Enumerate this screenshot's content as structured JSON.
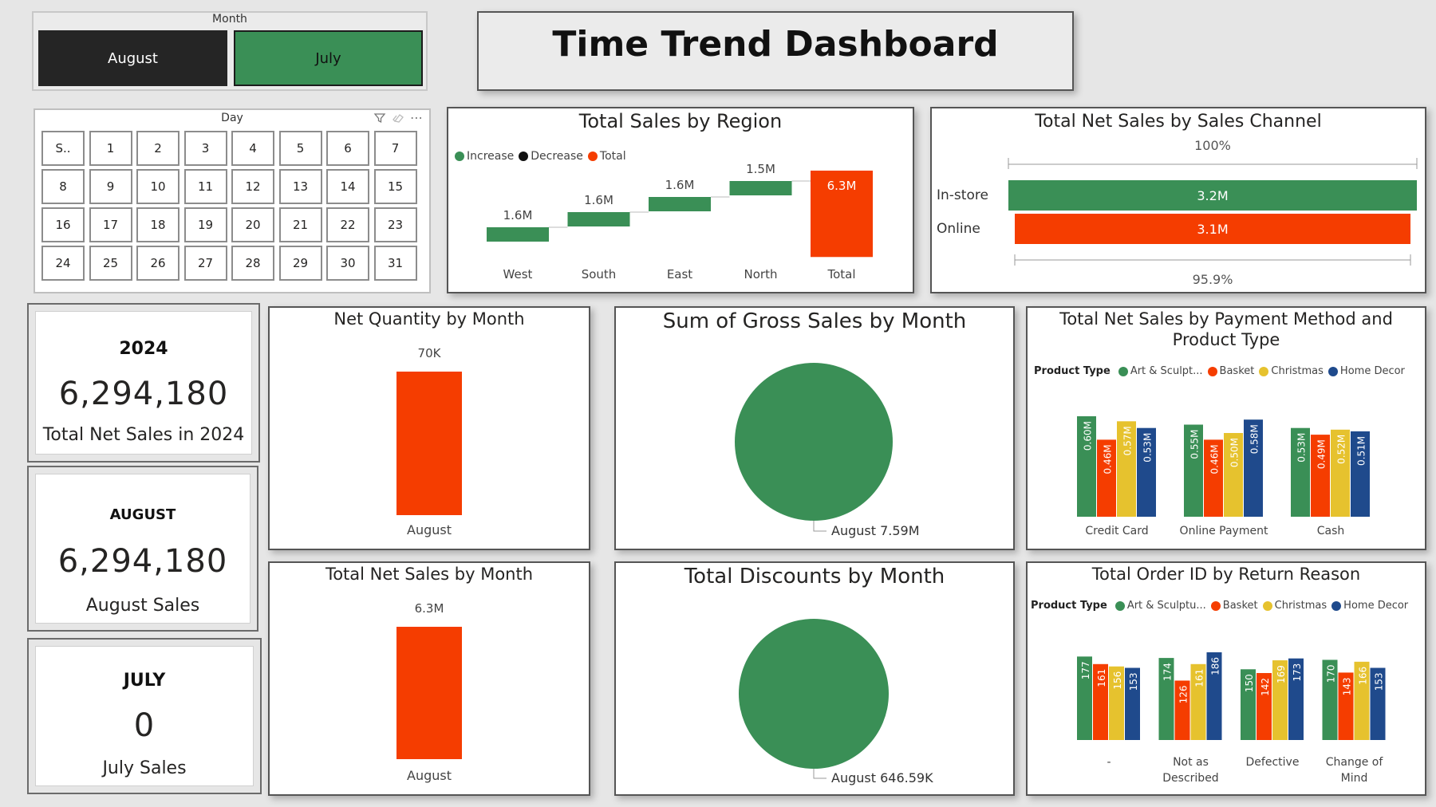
{
  "colors": {
    "green": "#3a8f56",
    "orange": "#f53d00",
    "black": "#1f1f1f",
    "yellow": "#e6c22e",
    "navy": "#1f4a8c",
    "tint": "#e6e6e6"
  },
  "header": {
    "title": "Time Trend Dashboard"
  },
  "month_slicer": {
    "title": "Month",
    "options": [
      "August",
      "July"
    ],
    "selected": "August"
  },
  "day_slicer": {
    "title": "Day",
    "icons": [
      "filter-icon",
      "eraser-icon",
      "more-options-icon"
    ],
    "days": [
      "S..",
      "1",
      "2",
      "3",
      "4",
      "5",
      "6",
      "7",
      "8",
      "9",
      "10",
      "11",
      "12",
      "13",
      "14",
      "15",
      "16",
      "17",
      "18",
      "19",
      "20",
      "21",
      "22",
      "23",
      "24",
      "25",
      "26",
      "27",
      "28",
      "29",
      "30",
      "31"
    ]
  },
  "kpis": [
    {
      "heading": "2024",
      "value": "6,294,180",
      "label": "Total Net Sales in 2024"
    },
    {
      "heading": "AUGUST",
      "value": "6,294,180",
      "label": "August Sales"
    },
    {
      "heading": "JULY",
      "value": "0",
      "label": "July Sales"
    }
  ],
  "chart_data": [
    {
      "id": "region",
      "type": "waterfall",
      "title": "Total Sales by Region",
      "legend": [
        {
          "name": "Increase",
          "color": "#3a8f56"
        },
        {
          "name": "Decrease",
          "color": "#1f1f1f"
        },
        {
          "name": "Total",
          "color": "#f53d00"
        }
      ],
      "categories": [
        "West",
        "South",
        "East",
        "North",
        "Total"
      ],
      "values": [
        1.6,
        1.6,
        1.6,
        1.5,
        6.3
      ],
      "labels": [
        "1.6M",
        "1.6M",
        "1.6M",
        "1.5M",
        "6.3M"
      ],
      "ylim": [
        -4.5,
        6.8
      ]
    },
    {
      "id": "channel",
      "type": "funnel",
      "title": "Total Net Sales by Sales Channel",
      "categories": [
        "In-store",
        "Online"
      ],
      "values": [
        3.2,
        3.1
      ],
      "labels": [
        "3.2M",
        "3.1M"
      ],
      "top_label": "100%",
      "bottom_label": "95.9%"
    },
    {
      "id": "netqty",
      "type": "bar",
      "title": "Net Quantity by Month",
      "categories": [
        "August"
      ],
      "values": [
        70000
      ],
      "labels": [
        "70K"
      ]
    },
    {
      "id": "gross",
      "type": "pie",
      "title": "Sum of Gross Sales by Month",
      "slices": [
        {
          "name": "August",
          "value": 7.59
        }
      ],
      "labels": [
        "August 7.59M"
      ]
    },
    {
      "id": "payment",
      "type": "bar",
      "title": "Total Net Sales by Payment Method and Product Type",
      "title_lines": [
        "Total Net Sales by Payment Method and",
        "Product Type"
      ],
      "legend_title": "Product Type",
      "categories": [
        "Credit Card",
        "Online Payment",
        "Cash"
      ],
      "series": [
        {
          "name": "Art & Sculpt...",
          "color": "#3a8f56",
          "values": [
            0.6,
            0.55,
            0.53
          ],
          "labels": [
            "0.60M",
            "0.55M",
            "0.53M"
          ]
        },
        {
          "name": "Basket",
          "color": "#f53d00",
          "values": [
            0.46,
            0.46,
            0.49
          ],
          "labels": [
            "0.46M",
            "0.46M",
            "0.49M"
          ]
        },
        {
          "name": "Christmas",
          "color": "#e6c22e",
          "values": [
            0.57,
            0.5,
            0.52
          ],
          "labels": [
            "0.57M",
            "0.50M",
            "0.52M"
          ]
        },
        {
          "name": "Home Decor",
          "color": "#1f4a8c",
          "values": [
            0.53,
            0.58,
            0.51
          ],
          "labels": [
            "0.53M",
            "0.58M",
            "0.51M"
          ]
        }
      ]
    },
    {
      "id": "netsales",
      "type": "bar",
      "title": "Total Net Sales by Month",
      "categories": [
        "August"
      ],
      "values": [
        6.3
      ],
      "labels": [
        "6.3M"
      ]
    },
    {
      "id": "discounts",
      "type": "pie",
      "title": "Total Discounts by Month",
      "slices": [
        {
          "name": "August",
          "value": 646.59
        }
      ],
      "labels": [
        "August 646.59K"
      ]
    },
    {
      "id": "returns",
      "type": "bar",
      "title": "Total Order ID by Return Reason",
      "legend_title": "Product Type",
      "categories": [
        "-",
        "Not as Described",
        "Defective",
        "Change of Mind"
      ],
      "category_lines": [
        [
          "-"
        ],
        [
          "Not as",
          "Described"
        ],
        [
          "Defective"
        ],
        [
          "Change of",
          "Mind"
        ]
      ],
      "series": [
        {
          "name": "Art & Sculptu...",
          "color": "#3a8f56",
          "values": [
            177,
            174,
            150,
            170
          ],
          "labels": [
            "177",
            "174",
            "150",
            "170"
          ]
        },
        {
          "name": "Basket",
          "color": "#f53d00",
          "values": [
            161,
            126,
            142,
            143
          ],
          "labels": [
            "161",
            "126",
            "142",
            "143"
          ]
        },
        {
          "name": "Christmas",
          "color": "#e6c22e",
          "values": [
            156,
            161,
            169,
            166
          ],
          "labels": [
            "156",
            "161",
            "169",
            "166"
          ]
        },
        {
          "name": "Home Decor",
          "color": "#1f4a8c",
          "values": [
            153,
            186,
            173,
            153
          ],
          "labels": [
            "153",
            "186",
            "173",
            "153"
          ]
        }
      ]
    }
  ]
}
